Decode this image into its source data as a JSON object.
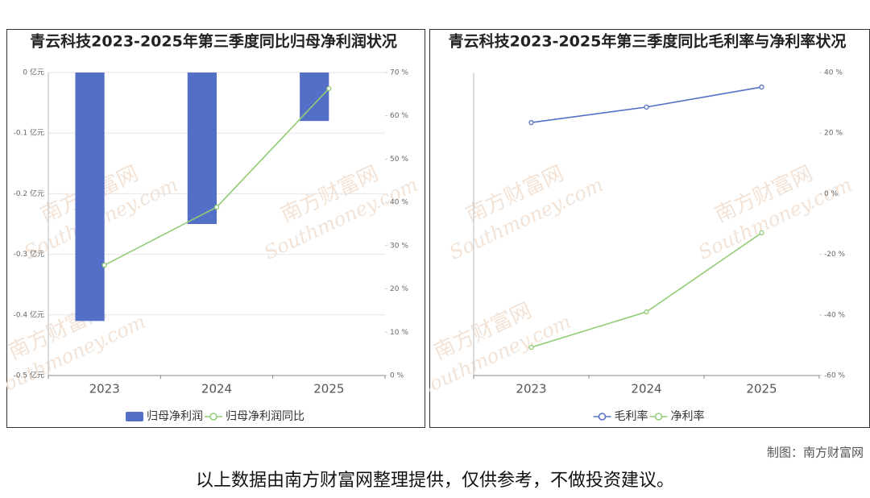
{
  "chart_data": [
    {
      "type": "combo",
      "title": "青云科技2023-2025年第三季度同比归母净利润状况",
      "categories": [
        "2023",
        "2024",
        "2025"
      ],
      "series": [
        {
          "name": "归母净利润",
          "type": "bar",
          "color": "#5470c6",
          "values": [
            -0.41,
            -0.25,
            -0.08
          ]
        },
        {
          "name": "归母净利润同比",
          "type": "line",
          "axis": "y2",
          "color": "#91cc75",
          "values": [
            25.5,
            38.9,
            66.3
          ]
        }
      ],
      "ylim": [
        -0.5,
        0
      ],
      "yticks": [
        {
          "value": 0,
          "label": "0 亿元"
        },
        {
          "value": -0.1,
          "label": "-0.1 亿元"
        },
        {
          "value": -0.2,
          "label": "-0.2 亿元"
        },
        {
          "value": -0.3,
          "label": "-0.3 亿元"
        },
        {
          "value": -0.4,
          "label": "-0.4 亿元"
        },
        {
          "value": -0.5,
          "label": "-0.5 亿元"
        }
      ],
      "y2lim": [
        0,
        70
      ],
      "y2ticks": [
        {
          "value": 70,
          "label": "70 %"
        },
        {
          "value": 60,
          "label": "60 %"
        },
        {
          "value": 50,
          "label": "50 %"
        },
        {
          "value": 40,
          "label": "40 %"
        },
        {
          "value": 30,
          "label": "30 %"
        },
        {
          "value": 20,
          "label": "20 %"
        },
        {
          "value": 10,
          "label": "10 %"
        },
        {
          "value": 0,
          "label": "0 %"
        }
      ],
      "grid": true
    },
    {
      "type": "line",
      "title": "青云科技2023-2025年第三季度同比毛利率与净利率状况",
      "categories": [
        "2023",
        "2024",
        "2025"
      ],
      "series": [
        {
          "name": "毛利率",
          "axis": "y2",
          "color": "#5470c6",
          "values": [
            23.5,
            28.6,
            35.2
          ]
        },
        {
          "name": "净利率",
          "axis": "y2",
          "color": "#91cc75",
          "values": [
            -50.7,
            -39,
            -12.9
          ]
        }
      ],
      "y2lim": [
        -60,
        40
      ],
      "y2ticks": [
        {
          "value": 40,
          "label": "40 %"
        },
        {
          "value": 20,
          "label": "20 %"
        },
        {
          "value": 0,
          "label": "0 %"
        },
        {
          "value": -20,
          "label": "-20 %"
        },
        {
          "value": -40,
          "label": "-40 %"
        },
        {
          "value": -60,
          "label": "-60 %"
        }
      ],
      "grid": false
    }
  ],
  "watermark": {
    "name": "南方财富网",
    "site": "Southmoney.com"
  },
  "footer": {
    "credit": "制图：南方财富网",
    "disclaimer": "以上数据由南方财富网整理提供，仅供参考，不做投资建议。"
  }
}
